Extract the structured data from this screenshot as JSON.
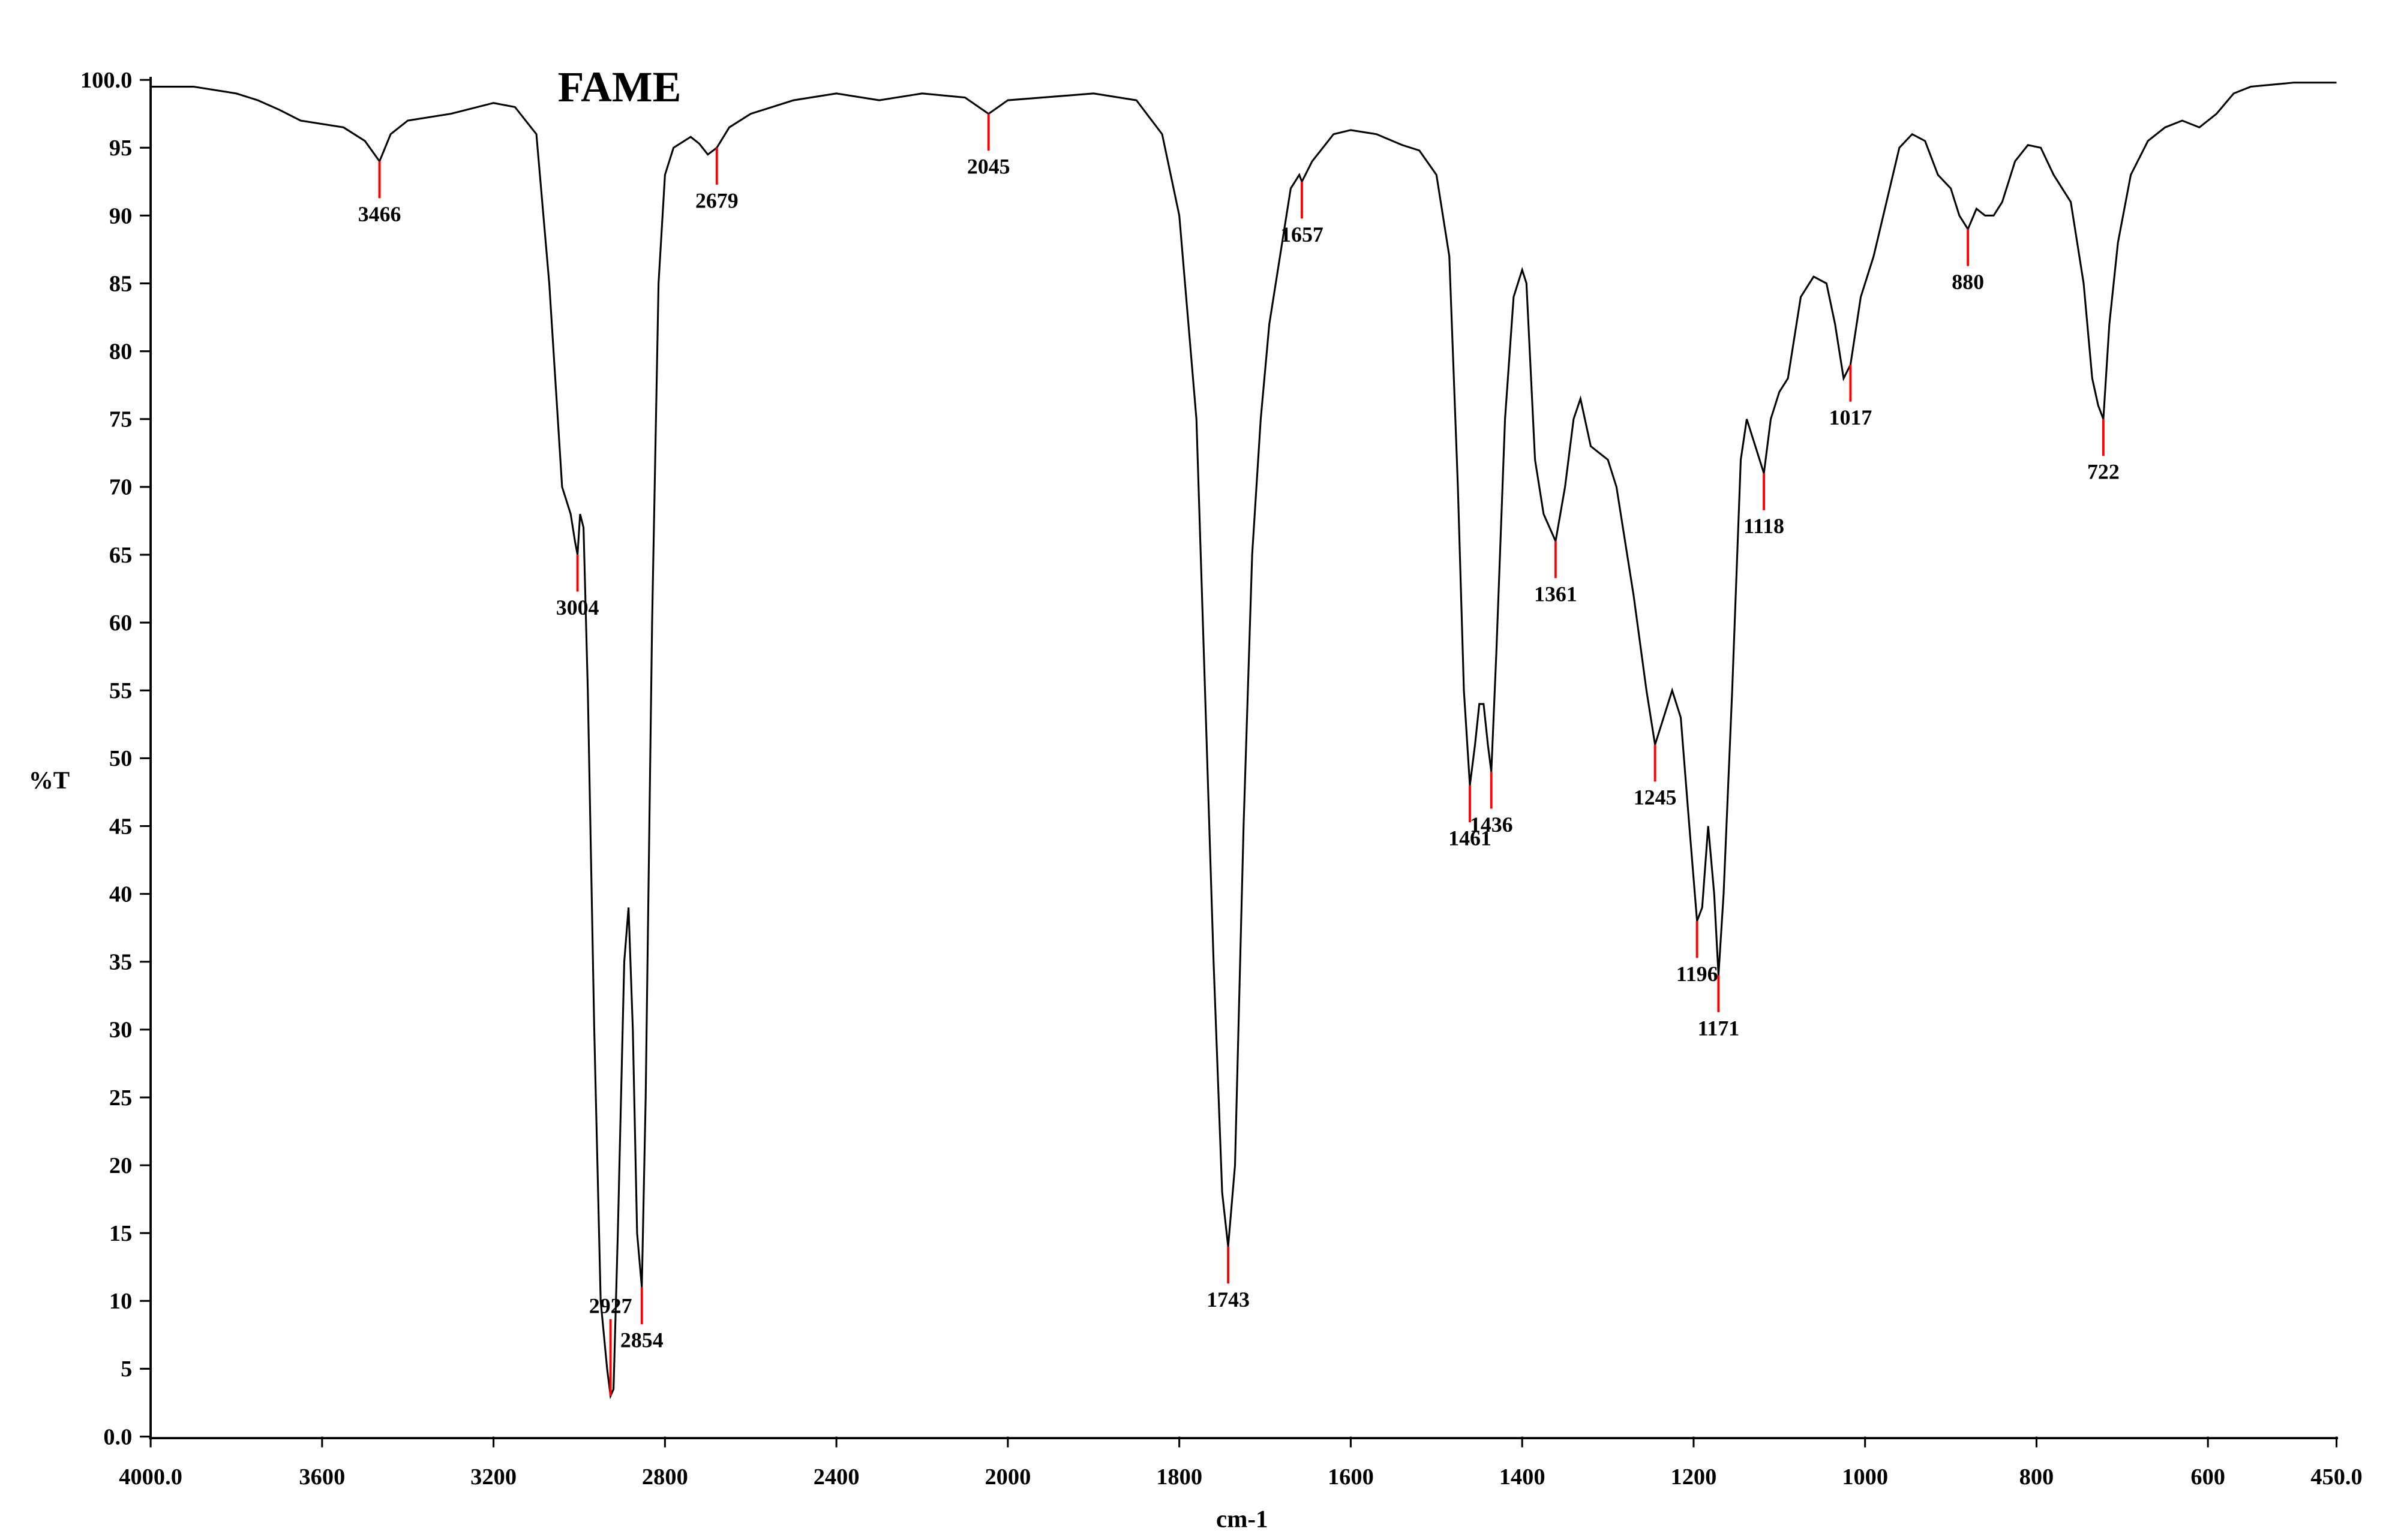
{
  "chart_data": {
    "type": "line",
    "title": "FAME",
    "x_label": "cm-1",
    "y_label": "%T",
    "xlim": [
      4000,
      450
    ],
    "xbreak": 2000,
    "ylim": [
      0,
      100
    ],
    "xticks": [
      {
        "value": 4000,
        "label": "4000.0"
      },
      3600,
      3200,
      2800,
      2400,
      2000,
      1800,
      1600,
      1400,
      1200,
      1000,
      800,
      600,
      {
        "value": 450,
        "label": "450.0"
      }
    ],
    "yticks": [
      {
        "value": 0,
        "label": "0.0"
      },
      5,
      10,
      15,
      20,
      25,
      30,
      35,
      40,
      45,
      50,
      55,
      60,
      65,
      70,
      75,
      80,
      85,
      90,
      95,
      {
        "value": 100,
        "label": "100.0"
      }
    ],
    "color": "#000000",
    "annotation_color": "#ff0000",
    "x": [
      4000,
      3900,
      3800,
      3750,
      3700,
      3650,
      3550,
      3500,
      3466,
      3440,
      3400,
      3300,
      3200,
      3150,
      3100,
      3070,
      3040,
      3020,
      3010,
      3004,
      2998,
      2990,
      2980,
      2965,
      2950,
      2935,
      2927,
      2920,
      2910,
      2895,
      2885,
      2875,
      2865,
      2854,
      2845,
      2830,
      2815,
      2800,
      2780,
      2740,
      2720,
      2700,
      2679,
      2650,
      2600,
      2500,
      2400,
      2300,
      2200,
      2100,
      2045,
      2000,
      1900,
      1850,
      1820,
      1800,
      1780,
      1770,
      1760,
      1750,
      1743,
      1735,
      1725,
      1715,
      1705,
      1695,
      1680,
      1670,
      1660,
      1657,
      1645,
      1620,
      1600,
      1570,
      1540,
      1520,
      1500,
      1485,
      1475,
      1468,
      1461,
      1455,
      1450,
      1445,
      1440,
      1436,
      1430,
      1420,
      1410,
      1400,
      1395,
      1385,
      1375,
      1361,
      1350,
      1340,
      1332,
      1320,
      1300,
      1290,
      1270,
      1255,
      1245,
      1235,
      1225,
      1215,
      1205,
      1196,
      1190,
      1183,
      1176,
      1171,
      1165,
      1155,
      1145,
      1138,
      1128,
      1118,
      1110,
      1100,
      1090,
      1075,
      1060,
      1045,
      1035,
      1025,
      1017,
      1005,
      990,
      975,
      960,
      945,
      930,
      915,
      900,
      890,
      880,
      870,
      860,
      850,
      840,
      825,
      810,
      795,
      780,
      760,
      745,
      735,
      728,
      722,
      715,
      705,
      690,
      670,
      650,
      630,
      610,
      590,
      570,
      550,
      500,
      450
    ],
    "values": [
      99.5,
      99.5,
      99,
      98.5,
      97.8,
      97,
      96.5,
      95.5,
      94,
      96,
      97,
      97.5,
      98.3,
      98,
      96,
      85,
      70,
      68,
      66,
      65,
      68,
      67,
      55,
      30,
      10,
      5,
      3,
      3.5,
      15,
      35,
      39,
      30,
      15,
      11,
      25,
      60,
      85,
      93,
      95,
      95.8,
      95.3,
      94.5,
      95,
      96.5,
      97.5,
      98.5,
      99,
      98.5,
      99,
      98.7,
      97.5,
      98.5,
      99,
      98.5,
      96,
      90,
      75,
      55,
      35,
      18,
      14,
      20,
      45,
      65,
      75,
      82,
      88,
      92,
      93,
      92.5,
      94,
      96,
      96.3,
      96,
      95.2,
      94.8,
      93,
      87,
      70,
      55,
      48,
      51,
      54,
      54,
      51,
      49,
      58,
      75,
      84,
      86,
      85,
      72,
      68,
      66,
      70,
      75,
      76.5,
      73,
      72,
      70,
      62,
      55,
      51,
      53,
      55,
      53,
      45,
      38,
      39,
      45,
      40,
      34,
      40,
      55,
      72,
      75,
      73,
      71,
      75,
      77,
      78,
      84,
      85.5,
      85,
      82,
      78,
      79,
      84,
      87,
      91,
      95,
      96,
      95.5,
      93,
      92,
      90,
      89,
      90.5,
      90,
      90,
      91,
      94,
      95.2,
      95,
      93,
      91,
      85,
      78,
      76,
      75,
      82,
      88,
      93,
      95.5,
      96.5,
      97,
      96.5,
      97.5,
      99,
      99.5,
      99.8,
      99.8
    ],
    "annotations": [
      {
        "label": "3466",
        "x": 3466,
        "y": 94
      },
      {
        "label": "3004",
        "x": 3004,
        "y": 65
      },
      {
        "label": "2927",
        "x": 2927,
        "y": 3
      },
      {
        "label": "2854",
        "x": 2854,
        "y": 11
      },
      {
        "label": "2679",
        "x": 2679,
        "y": 95
      },
      {
        "label": "2045",
        "x": 2045,
        "y": 97.5
      },
      {
        "label": "1743",
        "x": 1743,
        "y": 14
      },
      {
        "label": "1657",
        "x": 1657,
        "y": 92.5
      },
      {
        "label": "1461",
        "x": 1461,
        "y": 48
      },
      {
        "label": "1436",
        "x": 1436,
        "y": 49
      },
      {
        "label": "1361",
        "x": 1361,
        "y": 66
      },
      {
        "label": "1245",
        "x": 1245,
        "y": 51
      },
      {
        "label": "1196",
        "x": 1196,
        "y": 38
      },
      {
        "label": "1171",
        "x": 1171,
        "y": 34
      },
      {
        "label": "1118",
        "x": 1118,
        "y": 71
      },
      {
        "label": "1017",
        "x": 1017,
        "y": 79
      },
      {
        "label": "880",
        "x": 880,
        "y": 89
      },
      {
        "label": "722",
        "x": 722,
        "y": 75
      }
    ]
  }
}
